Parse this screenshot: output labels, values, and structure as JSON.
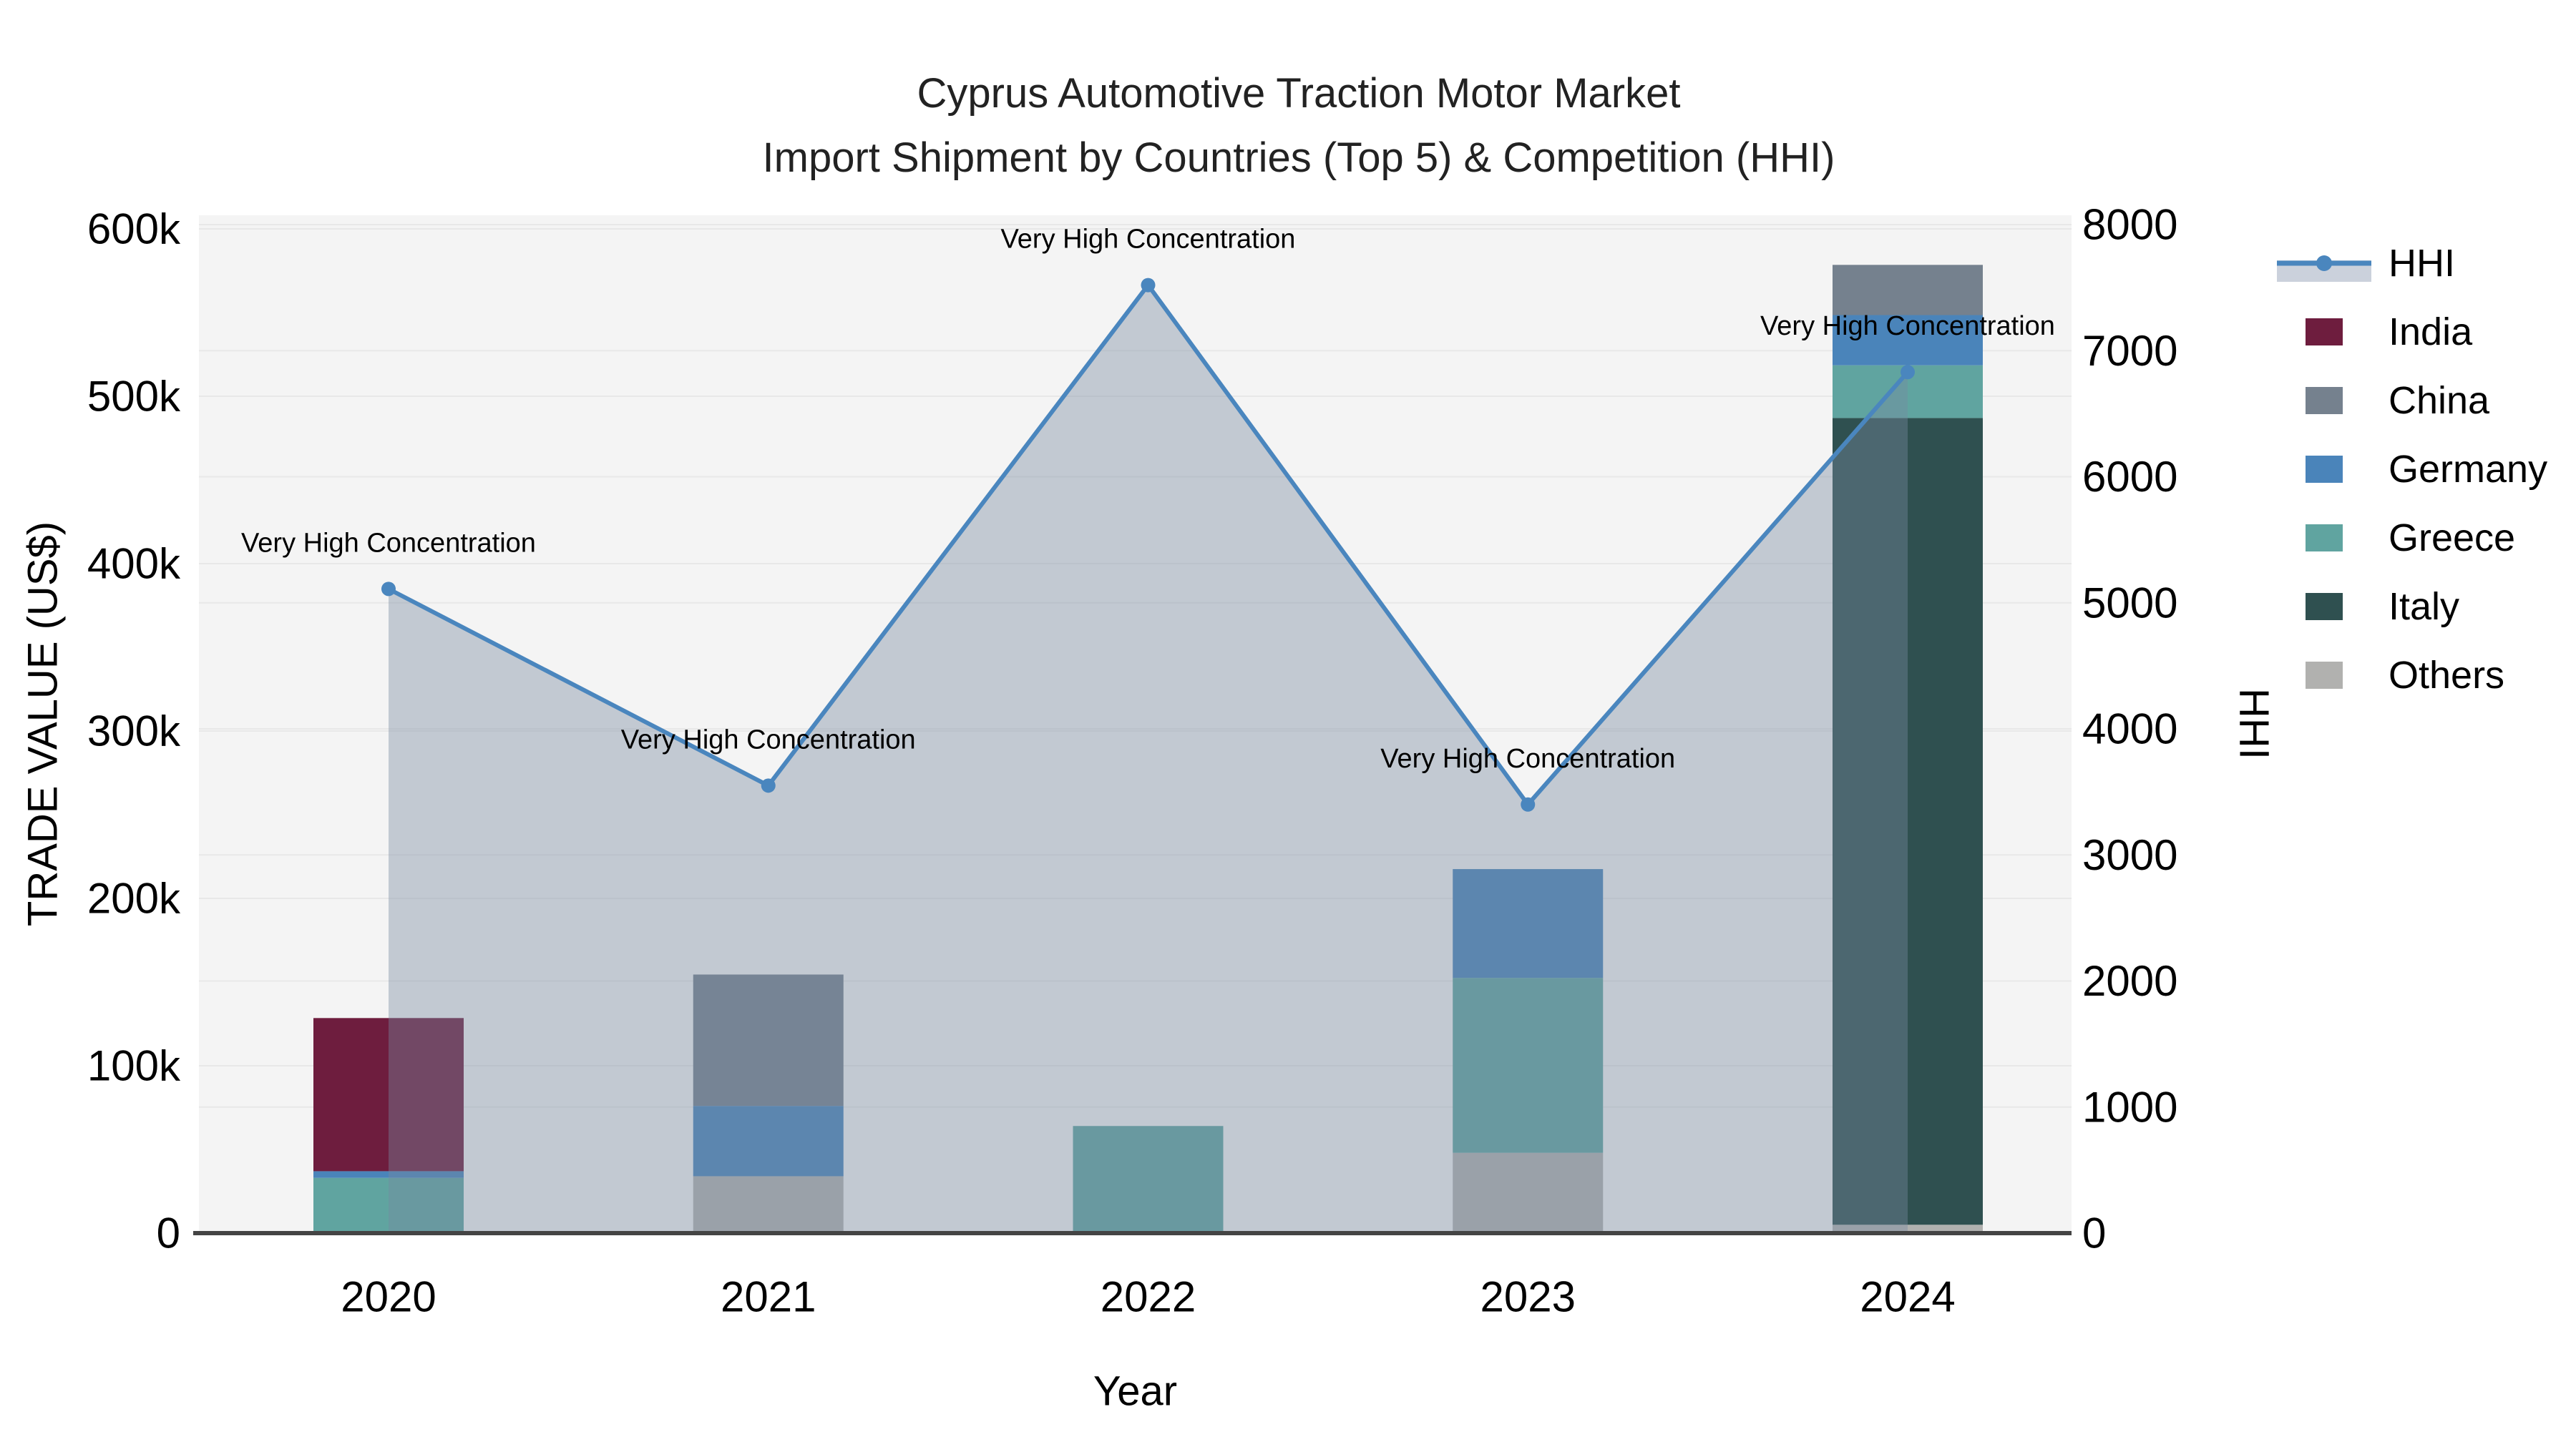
{
  "title": "Cyprus Automotive Traction Motor Market",
  "subtitle": "Import Shipment by Countries (Top 5) & Competition (HHI)",
  "legend": {
    "position": "right",
    "items": [
      {
        "label": "HHI",
        "marker": "line-dot-on-band"
      },
      {
        "label": "India",
        "marker": "swatch"
      },
      {
        "label": "China",
        "marker": "swatch"
      },
      {
        "label": "Germany",
        "marker": "swatch"
      },
      {
        "label": "Greece",
        "marker": "swatch"
      },
      {
        "label": "Italy",
        "marker": "swatch"
      },
      {
        "label": "Others",
        "marker": "swatch"
      }
    ]
  },
  "colors": {
    "hhi_line": "#4A86BE",
    "hhi_area": "rgba(121,137,160,0.40)",
    "hhi_legend_band": "#CBD1DC",
    "india": "#6E1D3E",
    "china": "#75818E",
    "germany": "#4A84BA",
    "greece": "#60A4A0",
    "italy": "#2F5050",
    "others": "#B1B1AF",
    "plot_bg": "#F4F4F4",
    "grid": "#E8E8E8",
    "axis_line": "#444444",
    "text": "#000000"
  },
  "chart_data": {
    "type": "bar+line combo (stacked bars, dual y-axis)",
    "title": "Cyprus Automotive Traction Motor Market",
    "subtitle": "Import Shipment by Countries (Top 5) & Competition (HHI)",
    "categories": [
      "2020",
      "2021",
      "2022",
      "2023",
      "2024"
    ],
    "x": {
      "label": "Year"
    },
    "y_left": {
      "label": "TRADE VALUE (US$)",
      "tick_labels": [
        "0",
        "100k",
        "200k",
        "300k",
        "400k",
        "500k",
        "600k"
      ],
      "tick_values": [
        0,
        100000,
        200000,
        300000,
        400000,
        500000,
        600000
      ],
      "min": 0,
      "max": 600000
    },
    "y_right": {
      "label": "HHI",
      "tick_labels": [
        "0",
        "1000",
        "2000",
        "3000",
        "4000",
        "5000",
        "6000",
        "7000",
        "8000"
      ],
      "tick_values": [
        0,
        1000,
        2000,
        3000,
        4000,
        5000,
        6000,
        7000,
        8000
      ],
      "min": 0,
      "max": 8000
    },
    "grid": true,
    "legend_position": "right",
    "bar_series": [
      {
        "name": "India",
        "axis": "left",
        "values": [
          91500,
          0,
          0,
          0,
          0
        ]
      },
      {
        "name": "China",
        "axis": "left",
        "values": [
          0,
          78500,
          0,
          0,
          30000
        ]
      },
      {
        "name": "Germany",
        "axis": "left",
        "values": [
          4000,
          42000,
          0,
          65000,
          30000
        ]
      },
      {
        "name": "Greece",
        "axis": "left",
        "values": [
          33000,
          0,
          64000,
          104500,
          31500
        ]
      },
      {
        "name": "Italy",
        "axis": "left",
        "values": [
          0,
          0,
          0,
          0,
          482000
        ]
      },
      {
        "name": "Others",
        "axis": "left",
        "values": [
          0,
          34000,
          0,
          48000,
          5000
        ]
      }
    ],
    "bar_totals": [
      128500,
      154500,
      64000,
      217500,
      578500
    ],
    "stack_order_bottom_to_top": [
      "Others",
      "Italy",
      "Greece",
      "Germany",
      "China",
      "India"
    ],
    "line_series": {
      "name": "HHI",
      "axis": "right",
      "values": [
        5110,
        3550,
        7520,
        3400,
        6830
      ],
      "style": "line with round markers and translucent area fill down to zero"
    },
    "annotations": [
      {
        "x": "2020",
        "text": "Very High Concentration"
      },
      {
        "x": "2021",
        "text": "Very High Concentration"
      },
      {
        "x": "2022",
        "text": "Very High Concentration"
      },
      {
        "x": "2023",
        "text": "Very High Concentration"
      },
      {
        "x": "2024",
        "text": "Very High Concentration"
      }
    ]
  }
}
